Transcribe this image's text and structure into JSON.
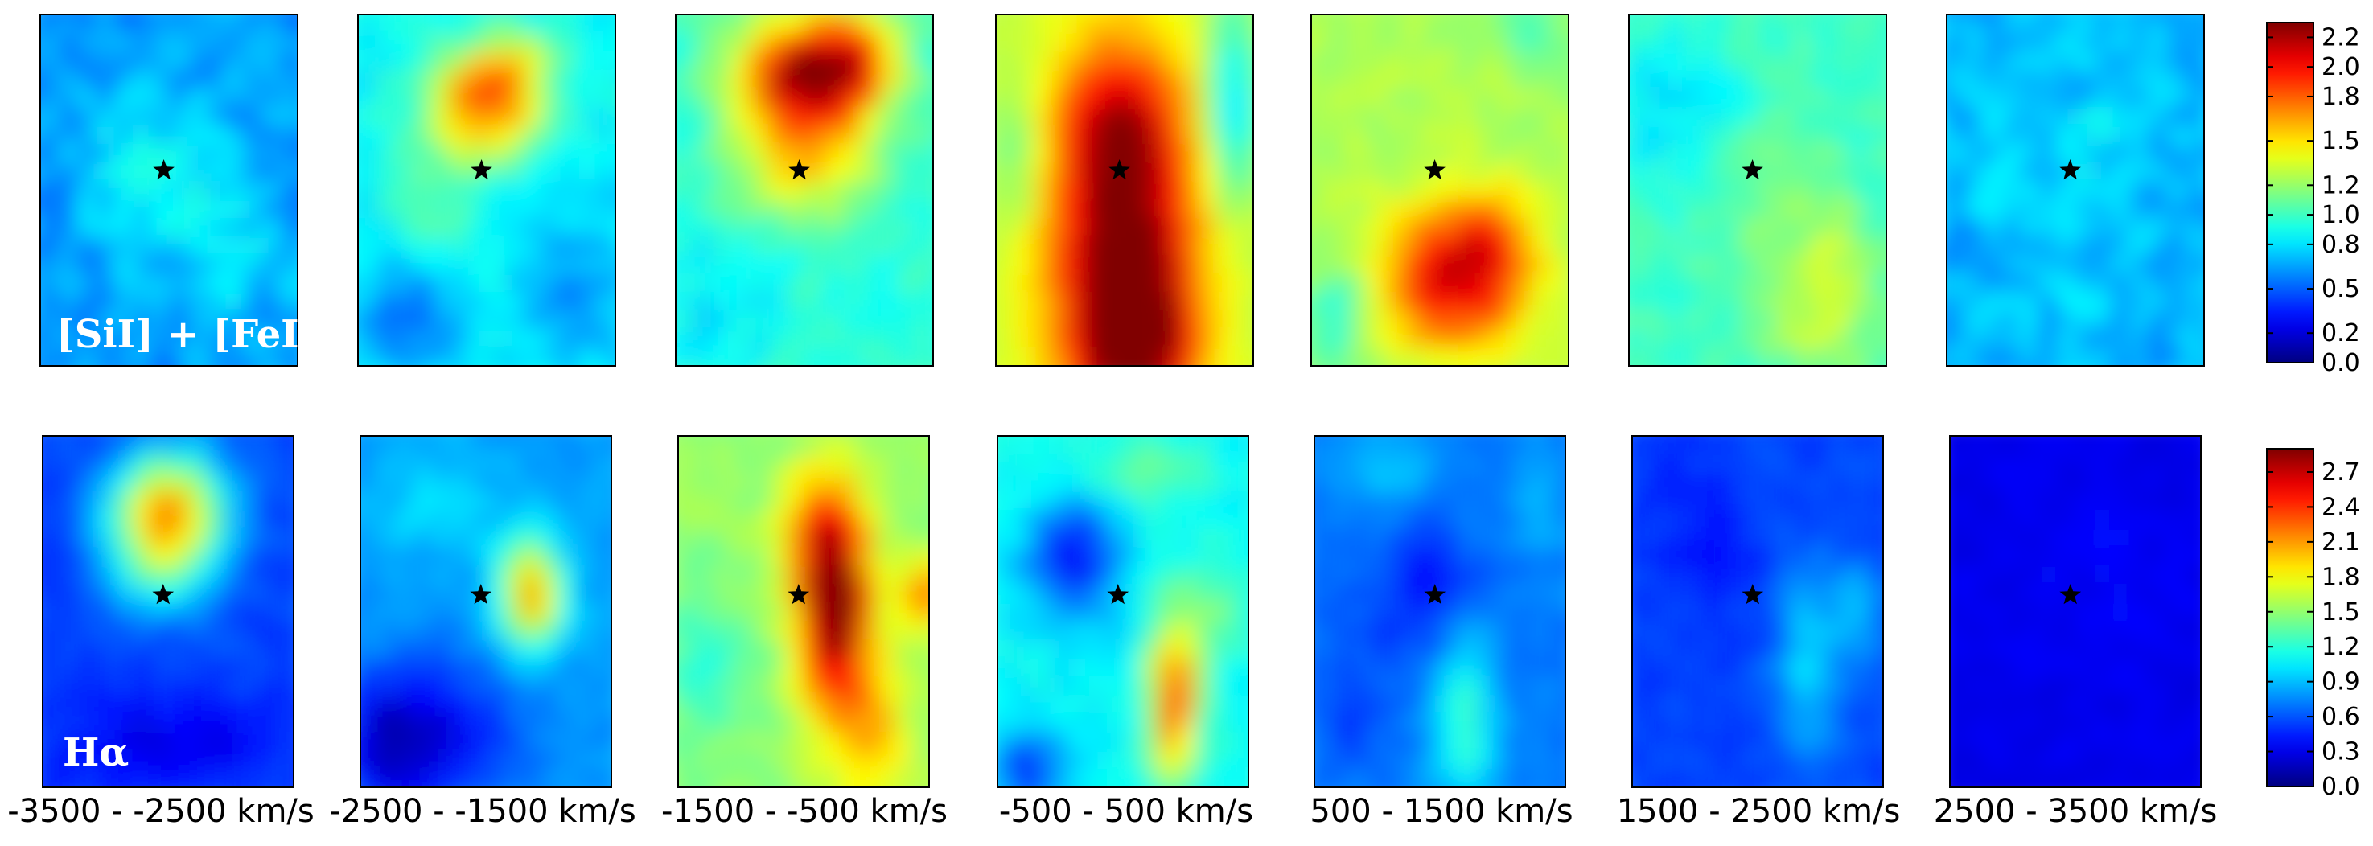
{
  "chart_data": {
    "type": "heatmap",
    "colormap": "jet",
    "velocity_bins": [
      "-3500 -  -2500 km/s",
      "-2500 -  -1500 km/s",
      "-1500 -  -500 km/s",
      "-500 -  500 km/s",
      "500 -  1500 km/s",
      "1500 -  2500 km/s",
      "2500 -  3500 km/s"
    ],
    "rows": [
      {
        "label": "[SiI] + [FeII]",
        "colorbar": {
          "range": [
            0.0,
            2.3
          ],
          "ticks": [
            0.0,
            0.2,
            0.5,
            0.8,
            1.0,
            1.2,
            1.5,
            1.8,
            2.0,
            2.2
          ]
        },
        "maps": [
          {
            "base": 0.62,
            "blobs": [
              [
                0.45,
                0.45,
                0.3,
                0.25,
                0.25
              ],
              [
                0.75,
                0.75,
                0.2,
                0.2,
                0.2
              ]
            ],
            "noise": 0.14,
            "seed": 11
          },
          {
            "base": 0.85,
            "blobs": [
              [
                0.5,
                0.25,
                0.22,
                0.15,
                0.95
              ],
              [
                0.6,
                0.12,
                0.15,
                0.1,
                0.3
              ],
              [
                0.3,
                0.5,
                0.2,
                0.2,
                0.2
              ],
              [
                0.2,
                0.85,
                0.2,
                0.15,
                -0.35
              ],
              [
                0.85,
                0.8,
                0.2,
                0.2,
                -0.25
              ]
            ],
            "noise": 0.1,
            "seed": 23
          },
          {
            "base": 0.95,
            "blobs": [
              [
                0.52,
                0.18,
                0.28,
                0.17,
                1.35
              ],
              [
                0.7,
                0.1,
                0.15,
                0.12,
                0.4
              ],
              [
                0.5,
                0.45,
                0.3,
                0.15,
                0.45
              ],
              [
                0.2,
                0.8,
                0.2,
                0.2,
                -0.15
              ]
            ],
            "noise": 0.1,
            "seed": 37
          },
          {
            "base": 1.3,
            "blobs": [
              [
                0.5,
                0.72,
                0.28,
                0.55,
                1.15
              ],
              [
                0.55,
                0.92,
                0.17,
                0.15,
                0.55
              ],
              [
                0.45,
                0.3,
                0.22,
                0.18,
                0.35
              ],
              [
                0.92,
                0.25,
                0.1,
                0.3,
                -0.55
              ],
              [
                0.08,
                0.4,
                0.1,
                0.2,
                -0.25
              ]
            ],
            "noise": 0.05,
            "seed": 41
          },
          {
            "base": 1.25,
            "blobs": [
              [
                0.55,
                0.75,
                0.27,
                0.2,
                0.85
              ],
              [
                0.7,
                0.65,
                0.15,
                0.15,
                0.3
              ],
              [
                0.1,
                0.85,
                0.12,
                0.15,
                -0.35
              ],
              [
                0.85,
                0.05,
                0.12,
                0.1,
                -0.3
              ]
            ],
            "noise": 0.08,
            "seed": 53
          },
          {
            "base": 1.0,
            "blobs": [
              [
                0.75,
                0.8,
                0.2,
                0.25,
                0.35
              ],
              [
                0.2,
                0.25,
                0.25,
                0.25,
                -0.2
              ],
              [
                0.5,
                0.5,
                0.25,
                0.25,
                0.1
              ]
            ],
            "noise": 0.1,
            "seed": 61
          },
          {
            "base": 0.68,
            "blobs": [
              [
                0.5,
                0.45,
                0.35,
                0.4,
                0.12
              ]
            ],
            "noise": 0.14,
            "seed": 71
          }
        ]
      },
      {
        "label": "Hα",
        "colorbar": {
          "range": [
            0.0,
            2.9
          ],
          "ticks": [
            0.0,
            0.3,
            0.6,
            0.9,
            1.2,
            1.5,
            1.8,
            2.1,
            2.4,
            2.7
          ]
        },
        "maps": [
          {
            "base": 0.55,
            "blobs": [
              [
                0.5,
                0.22,
                0.22,
                0.17,
                1.55
              ],
              [
                0.45,
                0.4,
                0.2,
                0.12,
                0.4
              ],
              [
                0.5,
                0.88,
                0.45,
                0.15,
                -0.25
              ]
            ],
            "noise": 0.08,
            "seed": 13
          },
          {
            "base": 0.8,
            "blobs": [
              [
                0.68,
                0.45,
                0.12,
                0.15,
                1.3
              ],
              [
                0.3,
                0.18,
                0.25,
                0.15,
                0.2
              ],
              [
                0.25,
                0.85,
                0.35,
                0.2,
                -0.55
              ],
              [
                0.1,
                0.9,
                0.15,
                0.15,
                -0.25
              ]
            ],
            "noise": 0.08,
            "seed": 29
          },
          {
            "base": 1.5,
            "blobs": [
              [
                0.62,
                0.48,
                0.14,
                0.28,
                1.6
              ],
              [
                0.55,
                0.25,
                0.15,
                0.15,
                0.45
              ],
              [
                1.0,
                0.45,
                0.12,
                0.1,
                0.7
              ],
              [
                0.78,
                0.85,
                0.15,
                0.2,
                0.5
              ],
              [
                0.1,
                0.65,
                0.15,
                0.2,
                -0.3
              ]
            ],
            "noise": 0.1,
            "seed": 31
          },
          {
            "base": 1.1,
            "blobs": [
              [
                0.3,
                0.35,
                0.17,
                0.17,
                -0.75
              ],
              [
                0.7,
                0.75,
                0.1,
                0.22,
                1.2
              ],
              [
                0.12,
                0.95,
                0.15,
                0.12,
                -0.6
              ],
              [
                0.55,
                0.1,
                0.25,
                0.1,
                0.3
              ],
              [
                0.85,
                0.5,
                0.15,
                0.15,
                0.3
              ]
            ],
            "noise": 0.1,
            "seed": 43
          },
          {
            "base": 0.7,
            "blobs": [
              [
                0.45,
                0.45,
                0.22,
                0.2,
                -0.3
              ],
              [
                0.6,
                0.8,
                0.12,
                0.28,
                0.55
              ],
              [
                0.3,
                0.1,
                0.2,
                0.12,
                0.25
              ],
              [
                0.9,
                0.2,
                0.12,
                0.2,
                0.15
              ],
              [
                0.15,
                0.75,
                0.12,
                0.15,
                -0.2
              ]
            ],
            "noise": 0.08,
            "seed": 59
          },
          {
            "base": 0.55,
            "blobs": [
              [
                0.7,
                0.65,
                0.12,
                0.28,
                0.45
              ],
              [
                0.9,
                0.5,
                0.1,
                0.15,
                0.35
              ],
              [
                0.3,
                0.3,
                0.2,
                0.2,
                -0.15
              ]
            ],
            "noise": 0.08,
            "seed": 67
          },
          {
            "base": 0.3,
            "blobs": [
              [
                0.6,
                0.4,
                0.3,
                0.3,
                0.05
              ]
            ],
            "noise": 0.06,
            "seed": 73
          }
        ]
      }
    ]
  }
}
